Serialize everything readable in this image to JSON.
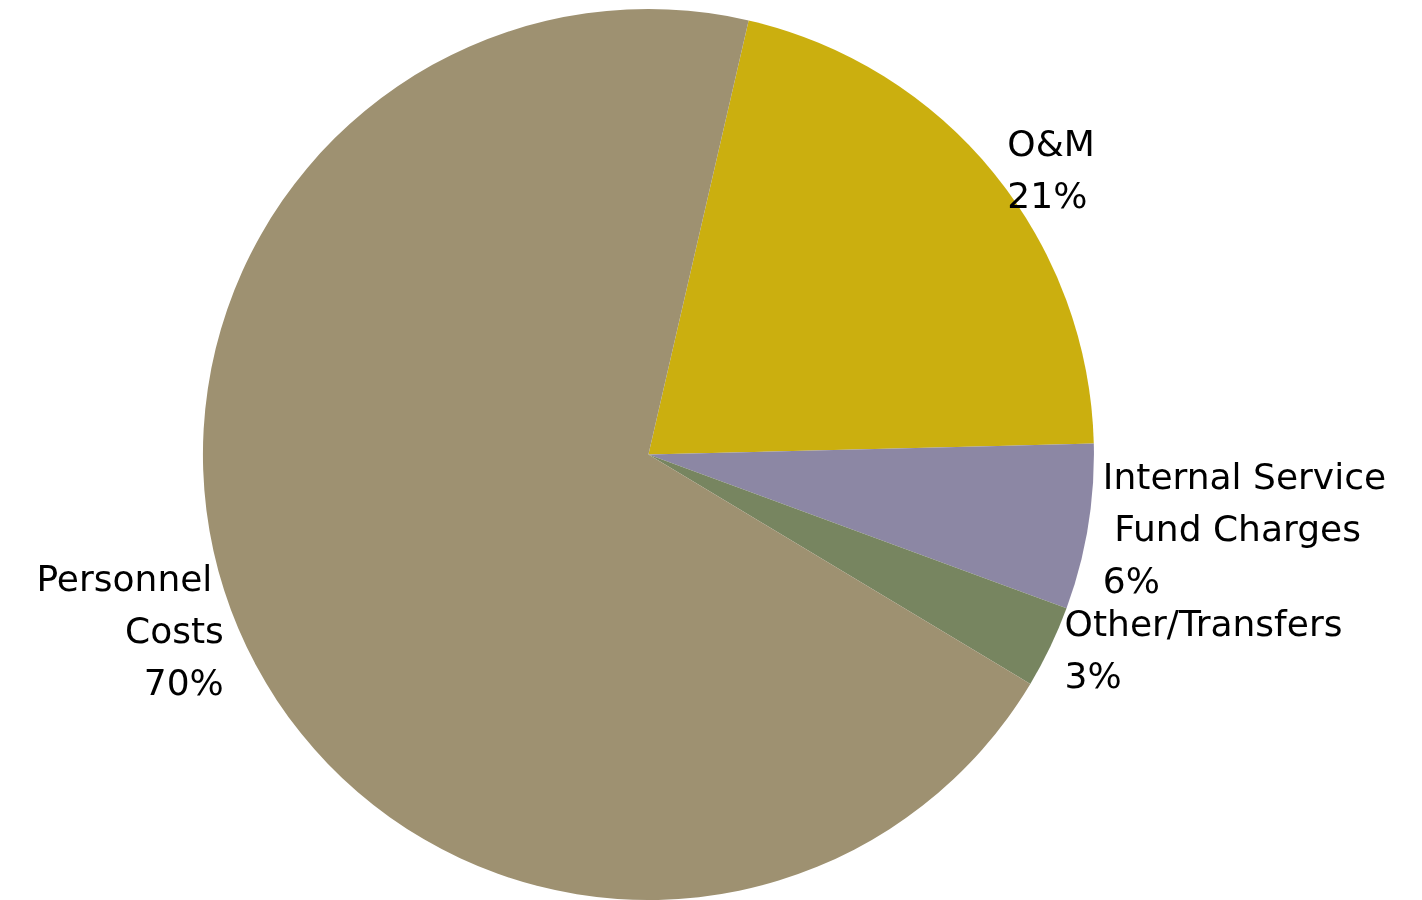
{
  "chart_data": {
    "type": "pie",
    "categories": [
      "O&M",
      "Internal Service Fund Charges",
      "Other/Transfers",
      "Personnel Costs"
    ],
    "values": [
      21,
      6,
      3,
      70
    ],
    "value_labels": [
      "21%",
      "6%",
      "3%",
      "70%"
    ],
    "colors": [
      "#cbaf0f",
      "#8c87a4",
      "#778560",
      "#9e9171"
    ],
    "legend": false
  }
}
